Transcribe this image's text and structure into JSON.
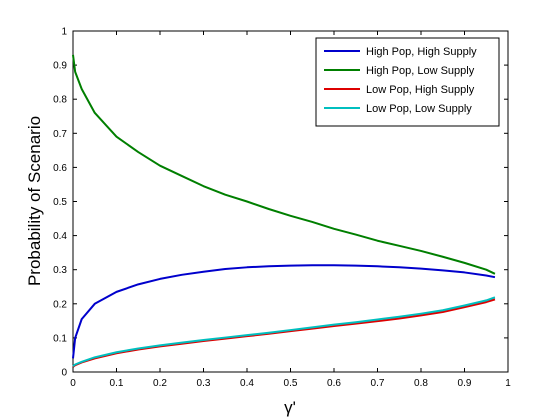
{
  "chart_data": {
    "type": "line",
    "title": "",
    "xlabel": "γ'",
    "ylabel": "Probability of Scenario",
    "xlim": [
      0,
      1
    ],
    "ylim": [
      0,
      1
    ],
    "xticks": [
      "0",
      "0.1",
      "0.2",
      "0.3",
      "0.4",
      "0.5",
      "0.6",
      "0.7",
      "0.8",
      "0.9",
      "1"
    ],
    "yticks": [
      "0",
      "0.1",
      "0.2",
      "0.3",
      "0.4",
      "0.5",
      "0.6",
      "0.7",
      "0.8",
      "0.9",
      "1"
    ],
    "grid": false,
    "legend_position": "top-right",
    "x": [
      0,
      0.005,
      0.02,
      0.05,
      0.1,
      0.15,
      0.2,
      0.25,
      0.3,
      0.35,
      0.4,
      0.45,
      0.5,
      0.55,
      0.6,
      0.65,
      0.7,
      0.75,
      0.8,
      0.85,
      0.9,
      0.95,
      0.97
    ],
    "series": [
      {
        "name": "High Pop, High Supply",
        "color": "#0000cc",
        "values": [
          0.04,
          0.1,
          0.155,
          0.2,
          0.235,
          0.257,
          0.273,
          0.285,
          0.294,
          0.302,
          0.307,
          0.31,
          0.312,
          0.313,
          0.313,
          0.312,
          0.31,
          0.307,
          0.303,
          0.298,
          0.292,
          0.283,
          0.278
        ]
      },
      {
        "name": "High Pop, Low Supply",
        "color": "#007f00",
        "values": [
          0.93,
          0.88,
          0.83,
          0.76,
          0.69,
          0.645,
          0.605,
          0.575,
          0.545,
          0.52,
          0.5,
          0.478,
          0.458,
          0.44,
          0.42,
          0.403,
          0.385,
          0.37,
          0.355,
          0.338,
          0.32,
          0.3,
          0.288
        ]
      },
      {
        "name": "Low Pop, High Supply",
        "color": "#dd0000",
        "values": [
          0.015,
          0.02,
          0.028,
          0.04,
          0.055,
          0.066,
          0.075,
          0.083,
          0.091,
          0.098,
          0.105,
          0.112,
          0.12,
          0.127,
          0.135,
          0.142,
          0.149,
          0.157,
          0.166,
          0.176,
          0.19,
          0.205,
          0.213
        ]
      },
      {
        "name": "Low Pop, Low Supply",
        "color": "#00bfbf",
        "values": [
          0.017,
          0.022,
          0.03,
          0.043,
          0.058,
          0.069,
          0.078,
          0.086,
          0.094,
          0.101,
          0.108,
          0.115,
          0.123,
          0.131,
          0.139,
          0.146,
          0.154,
          0.162,
          0.171,
          0.181,
          0.195,
          0.21,
          0.219
        ]
      }
    ]
  }
}
